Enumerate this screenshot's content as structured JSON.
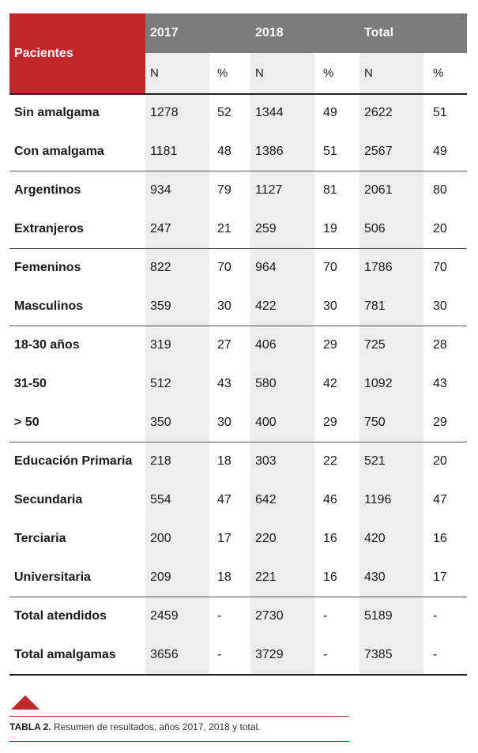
{
  "header": {
    "pacientes": "Pacientes",
    "years": [
      "2017",
      "2018",
      "Total"
    ],
    "sub": [
      "N",
      "%",
      "N",
      "%",
      "N",
      "%"
    ]
  },
  "groups": [
    {
      "rows": [
        {
          "label": "Sin amalgama",
          "v": [
            "1278",
            "52",
            "1344",
            "49",
            "2622",
            "51"
          ]
        },
        {
          "label": "Con amalgama",
          "v": [
            "1181",
            "48",
            "1386",
            "51",
            "2567",
            "49"
          ]
        }
      ]
    },
    {
      "rows": [
        {
          "label": "Argentinos",
          "v": [
            "934",
            "79",
            "1127",
            "81",
            "2061",
            "80"
          ]
        },
        {
          "label": "Extranjeros",
          "v": [
            "247",
            "21",
            "259",
            "19",
            "506",
            "20"
          ]
        }
      ]
    },
    {
      "rows": [
        {
          "label": "Femeninos",
          "v": [
            "822",
            "70",
            "964",
            "70",
            "1786",
            "70"
          ]
        },
        {
          "label": "Masculinos",
          "v": [
            "359",
            "30",
            "422",
            "30",
            "781",
            "30"
          ]
        }
      ]
    },
    {
      "rows": [
        {
          "label": "18-30 años",
          "v": [
            "319",
            "27",
            "406",
            "29",
            "725",
            "28"
          ]
        },
        {
          "label": "31-50",
          "v": [
            "512",
            "43",
            "580",
            "42",
            "1092",
            "43"
          ]
        },
        {
          "label": "> 50",
          "v": [
            "350",
            "30",
            "400",
            "29",
            "750",
            "29"
          ]
        }
      ]
    },
    {
      "rows": [
        {
          "label": "Educación Primaria",
          "v": [
            "218",
            "18",
            "303",
            "22",
            "521",
            "20"
          ]
        },
        {
          "label": "Secundaria",
          "v": [
            "554",
            "47",
            "642",
            "46",
            "1196",
            "47"
          ]
        },
        {
          "label": "Terciaria",
          "v": [
            "200",
            "17",
            "220",
            "16",
            "420",
            "16"
          ]
        },
        {
          "label": "Universitaria",
          "v": [
            "209",
            "18",
            "221",
            "16",
            "430",
            "17"
          ]
        }
      ]
    },
    {
      "rows": [
        {
          "label": "Total atendidos",
          "v": [
            "2459",
            "-",
            "2730",
            "-",
            "5189",
            "-"
          ]
        },
        {
          "label": "Total amalgamas",
          "v": [
            "3656",
            "-",
            "3729",
            "-",
            "7385",
            "-"
          ]
        }
      ]
    }
  ],
  "caption": {
    "prefix": "TABLA 2.",
    "text": " Resumen de resultados, años 2017, 2018 y total."
  },
  "colors": {
    "accent": "#c0282c",
    "header_gray": "#7b7b7b",
    "shade": "#ededed"
  }
}
